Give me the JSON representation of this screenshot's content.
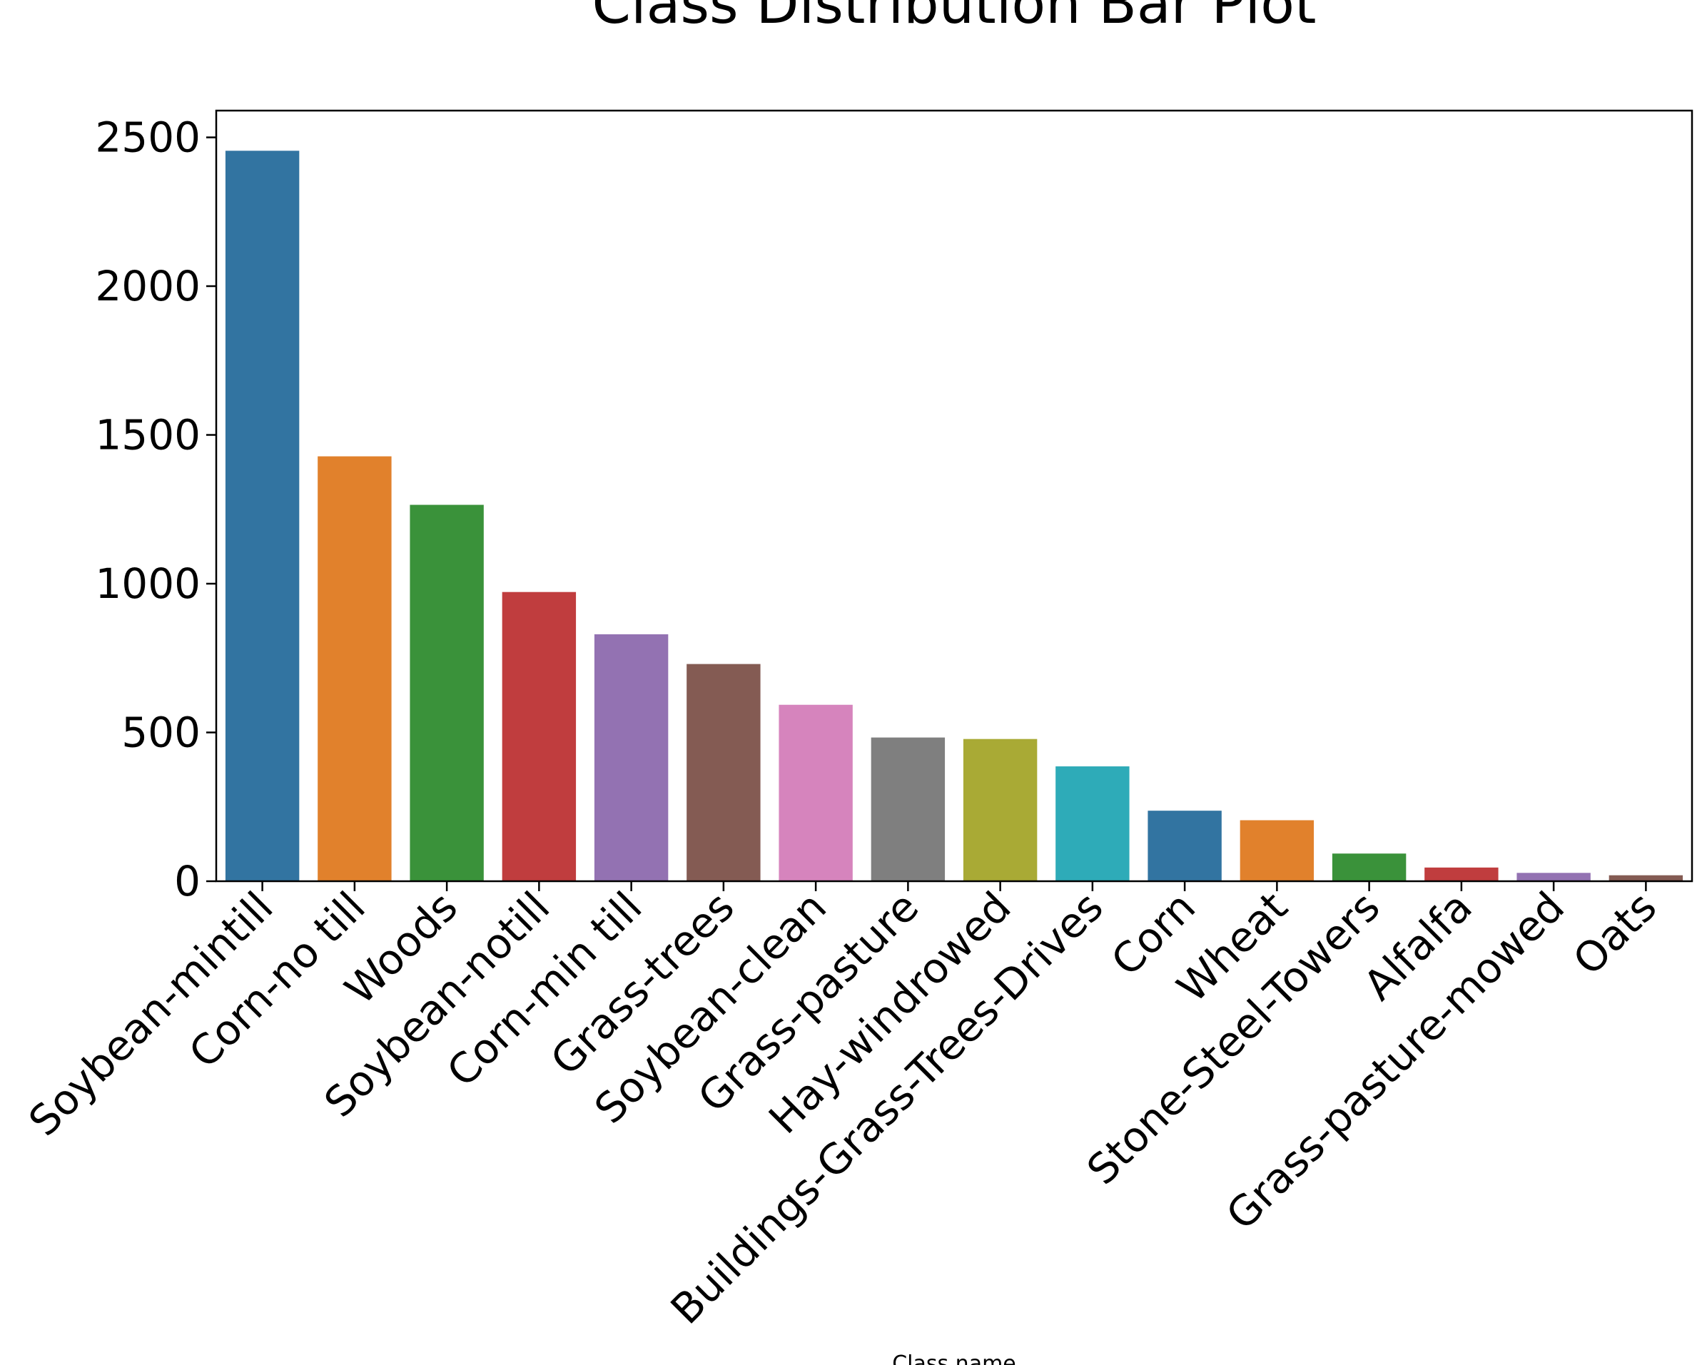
{
  "chart_data": {
    "type": "bar",
    "title": "Class Distribution Bar Plot",
    "xlabel": "Class name",
    "ylabel": "",
    "ylim": [
      0,
      2590
    ],
    "yticks": [
      0,
      500,
      1000,
      1500,
      2000,
      2500
    ],
    "grid": false,
    "legend": "none",
    "categories": [
      "Soybean-mintill",
      "Corn-no till",
      "Woods",
      "Soybean-notill",
      "Corn-min till",
      "Grass-trees",
      "Soybean-clean",
      "Grass-pasture",
      "Hay-windrowed",
      "Buildings-Grass-Trees-Drives",
      "Corn",
      "Wheat",
      "Stone-Steel-Towers",
      "Alfalfa",
      "Grass-pasture-mowed",
      "Oats"
    ],
    "values": [
      2455,
      1428,
      1265,
      972,
      830,
      730,
      593,
      483,
      478,
      386,
      237,
      205,
      93,
      46,
      28,
      20
    ],
    "colors": [
      "#3274a1",
      "#e1812c",
      "#3a923a",
      "#c03d3e",
      "#9372b2",
      "#845b53",
      "#d684bd",
      "#7f7f7f",
      "#a9aa35",
      "#2eabb8",
      "#3274a1",
      "#e1812c",
      "#3a923a",
      "#c03d3e",
      "#9372b2",
      "#845b53"
    ]
  }
}
